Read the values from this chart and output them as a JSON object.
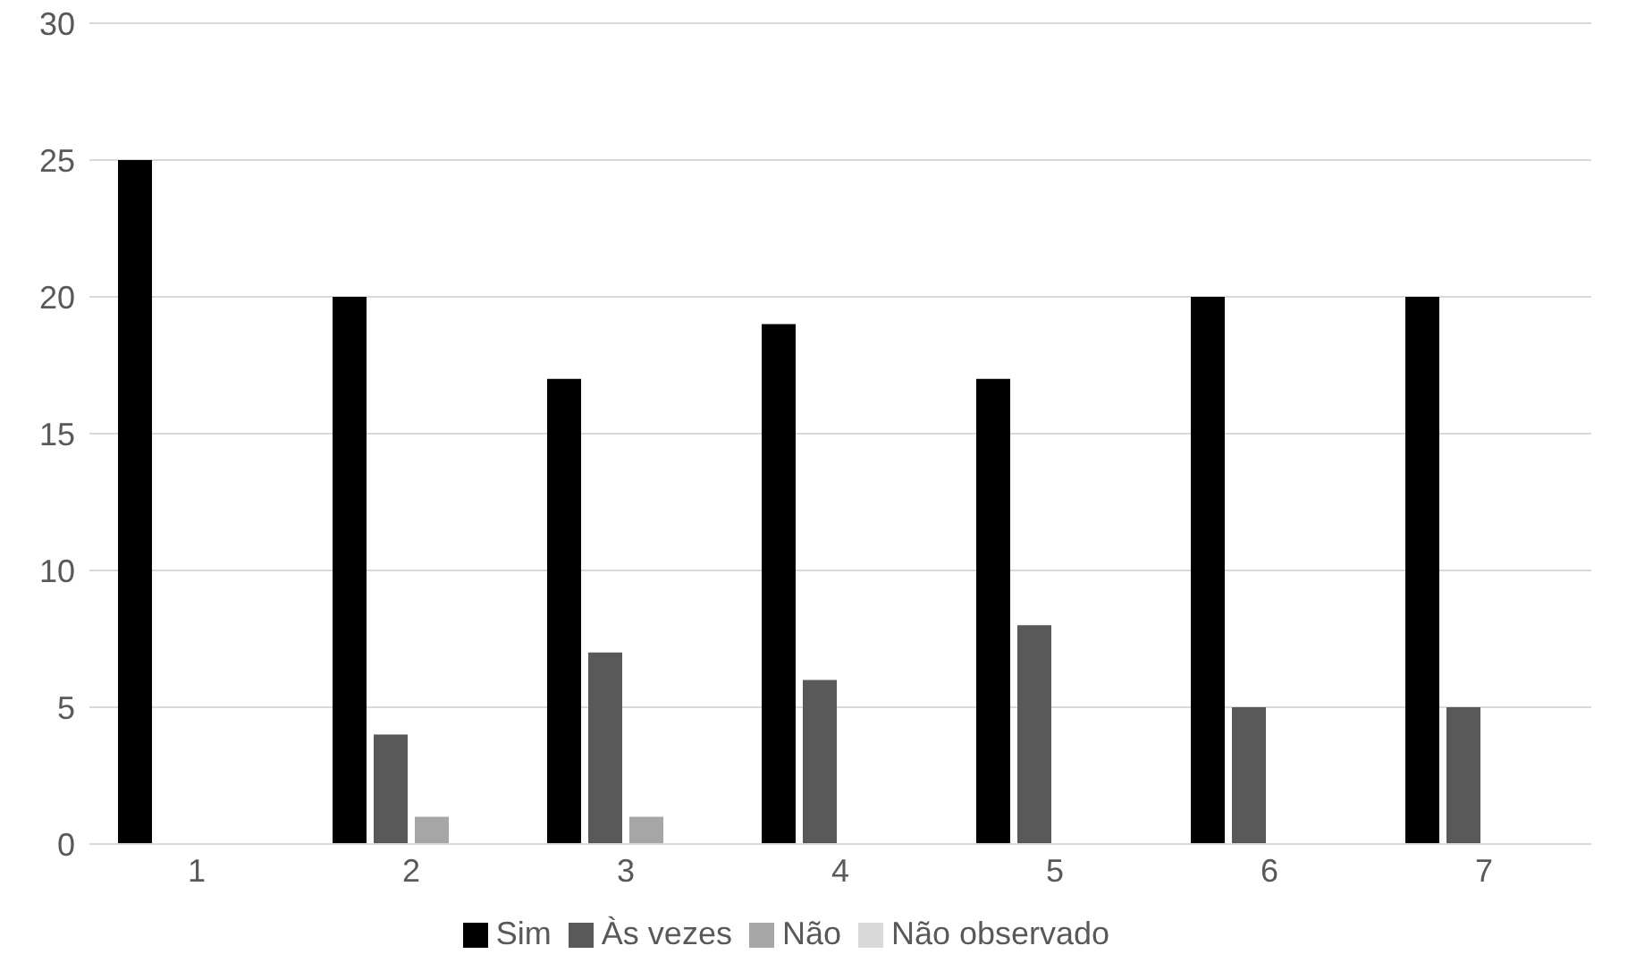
{
  "chart_data": {
    "type": "bar",
    "categories": [
      "1",
      "2",
      "3",
      "4",
      "5",
      "6",
      "7"
    ],
    "series": [
      {
        "name": "Sim",
        "color": "#000000",
        "values": [
          25,
          20,
          17,
          19,
          17,
          20,
          20
        ]
      },
      {
        "name": "Às vezes",
        "color": "#595959",
        "values": [
          0,
          4,
          7,
          6,
          8,
          5,
          5
        ]
      },
      {
        "name": "Não",
        "color": "#a6a6a6",
        "values": [
          0,
          1,
          1,
          0,
          0,
          0,
          0
        ]
      },
      {
        "name": "Não observado",
        "color": "#d9d9d9",
        "values": [
          0,
          0,
          0,
          0,
          0,
          0,
          0
        ]
      }
    ],
    "ylim": [
      0,
      30
    ],
    "yticks": [
      0,
      5,
      10,
      15,
      20,
      25,
      30
    ],
    "grid": "y",
    "legend": "bottom"
  }
}
